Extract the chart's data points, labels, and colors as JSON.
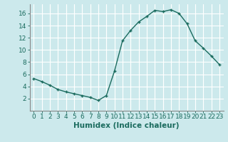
{
  "x": [
    0,
    1,
    2,
    3,
    4,
    5,
    6,
    7,
    8,
    9,
    10,
    11,
    12,
    13,
    14,
    15,
    16,
    17,
    18,
    19,
    20,
    21,
    22,
    23
  ],
  "y": [
    5.3,
    4.8,
    4.2,
    3.5,
    3.1,
    2.8,
    2.5,
    2.2,
    1.7,
    2.5,
    6.5,
    11.5,
    13.2,
    14.6,
    15.5,
    16.5,
    16.3,
    16.6,
    16.0,
    14.3,
    11.5,
    10.3,
    9.0,
    7.6
  ],
  "line_color": "#1a6b5e",
  "marker": "+",
  "marker_size": 3.5,
  "bg_color": "#cce9ec",
  "grid_color": "#ffffff",
  "xlabel": "Humidex (Indice chaleur)",
  "xlim": [
    -0.5,
    23.5
  ],
  "ylim": [
    0,
    17.5
  ],
  "yticks": [
    2,
    4,
    6,
    8,
    10,
    12,
    14,
    16
  ],
  "xticks": [
    0,
    1,
    2,
    3,
    4,
    5,
    6,
    7,
    8,
    9,
    10,
    11,
    12,
    13,
    14,
    15,
    16,
    17,
    18,
    19,
    20,
    21,
    22,
    23
  ],
  "tick_label_size": 6.5,
  "xlabel_size": 7.5,
  "line_width": 1.0
}
